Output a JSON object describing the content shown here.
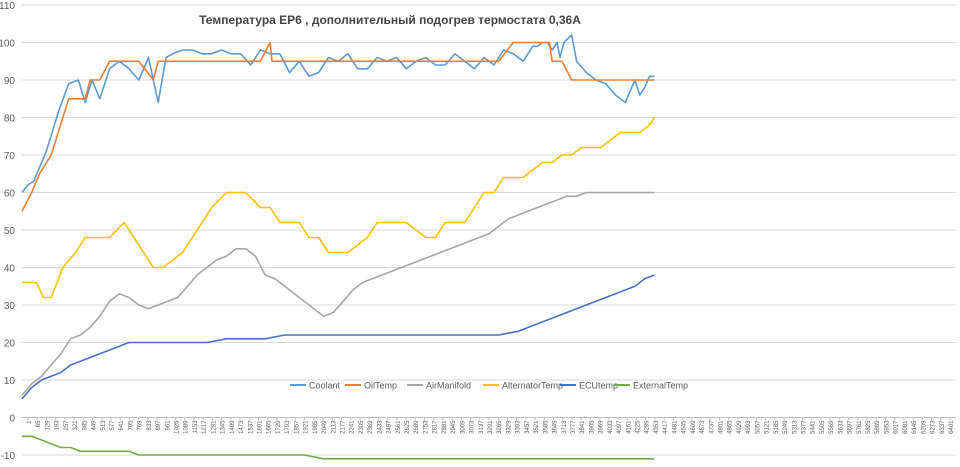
{
  "chart_data": {
    "type": "line",
    "title": "Температура ЕР6 , дополнительный подогрев термостата 0,36А",
    "xlabel": "",
    "ylabel": "",
    "ylim": [
      -10,
      110
    ],
    "yticks": [
      -10,
      0,
      10,
      20,
      30,
      40,
      50,
      60,
      70,
      80,
      90,
      100,
      110
    ],
    "xlim": [
      0,
      9600
    ],
    "grid": true,
    "legend_position": "bottom",
    "xtick_labels": [
      "1",
      "65",
      "129",
      "193",
      "257",
      "321",
      "385",
      "449",
      "513",
      "577",
      "641",
      "705",
      "769",
      "833",
      "897",
      "961",
      "1025",
      "1089",
      "1153",
      "1217",
      "1281",
      "1345",
      "1409",
      "1473",
      "1537",
      "1601",
      "1665",
      "1729",
      "1793",
      "1857",
      "1921",
      "1985",
      "2049",
      "2113",
      "2177",
      "2241",
      "2305",
      "2369",
      "2433",
      "2497",
      "2561",
      "2625",
      "2689",
      "2753",
      "2817",
      "2881",
      "2945",
      "3009",
      "3073",
      "3137",
      "3201",
      "3265",
      "3329",
      "3393",
      "3457",
      "3521",
      "3585",
      "3649",
      "3713",
      "3777",
      "3841",
      "3905",
      "3969",
      "4033",
      "4097",
      "4161",
      "4225",
      "4289",
      "4353",
      "4417",
      "4481",
      "4545",
      "4609",
      "4673",
      "4737",
      "4801",
      "4865",
      "4929",
      "4993",
      "5057",
      "5121",
      "5185",
      "5249",
      "5313",
      "5377",
      "5441",
      "5505",
      "5569",
      "5633",
      "5697",
      "5761",
      "5825",
      "5889",
      "5953",
      "6017",
      "6081",
      "6145",
      "6209",
      "6273",
      "6337",
      "6401"
    ],
    "series": [
      {
        "name": "Coolant",
        "color": "#5b9bd5",
        "x": [
          0,
          60,
          120,
          250,
          380,
          480,
          580,
          650,
          720,
          800,
          900,
          1000,
          1100,
          1200,
          1300,
          1350,
          1400,
          1480,
          1550,
          1650,
          1750,
          1850,
          1950,
          2050,
          2150,
          2250,
          2350,
          2450,
          2550,
          2650,
          2750,
          2850,
          2950,
          3050,
          3150,
          3250,
          3350,
          3450,
          3550,
          3650,
          3750,
          3850,
          3950,
          4050,
          4150,
          4250,
          4350,
          4450,
          4550,
          4650,
          4750,
          4850,
          4950,
          5050,
          5150,
          5250,
          5300,
          5350,
          5400,
          5450,
          5500,
          5530,
          5570,
          5650,
          5700,
          5800,
          5900,
          6000,
          6100,
          6200,
          6250,
          6300,
          6350,
          6400,
          6450,
          6500
        ],
        "y": [
          60,
          62,
          63,
          71,
          82,
          89,
          90,
          84,
          90,
          85,
          93,
          95,
          93,
          90,
          96,
          90,
          84,
          96,
          97,
          98,
          98,
          97,
          97,
          98,
          97,
          97,
          94,
          98,
          97,
          97,
          92,
          95,
          91,
          92,
          96,
          95,
          97,
          93,
          93,
          96,
          95,
          96,
          93,
          95,
          96,
          94,
          94,
          97,
          95,
          93,
          96,
          94,
          98,
          97,
          95,
          99,
          99,
          100,
          100,
          98,
          100,
          96,
          100,
          102,
          95,
          92,
          90,
          89,
          86,
          84,
          87,
          90,
          86,
          88,
          91,
          91
        ]
      },
      {
        "name": "OilTemp",
        "color": "#ed7d31",
        "x": [
          0,
          100,
          180,
          300,
          420,
          480,
          550,
          650,
          700,
          800,
          900,
          1100,
          1200,
          1350,
          1400,
          1500,
          1600,
          2150,
          2250,
          2450,
          2550,
          2570,
          2650,
          2800,
          3050,
          3100,
          3200,
          3300,
          4900,
          5050,
          5100,
          5200,
          5300,
          5420,
          5450,
          5550,
          5650,
          5750,
          5800,
          5900,
          6500
        ],
        "y": [
          55,
          60,
          65,
          70,
          80,
          85,
          85,
          85,
          90,
          90,
          95,
          95,
          95,
          90,
          95,
          95,
          95,
          95,
          95,
          95,
          100,
          95,
          95,
          95,
          95,
          95,
          95,
          95,
          95,
          100,
          100,
          100,
          100,
          100,
          95,
          95,
          90,
          90,
          90,
          90,
          90
        ]
      },
      {
        "name": "AirManifold",
        "color": "#a5a5a5",
        "x": [
          0,
          100,
          200,
          300,
          400,
          500,
          600,
          700,
          800,
          900,
          1000,
          1100,
          1200,
          1300,
          1400,
          1500,
          1600,
          1700,
          1800,
          1900,
          2000,
          2100,
          2200,
          2300,
          2400,
          2500,
          2600,
          2700,
          2800,
          2900,
          3000,
          3100,
          3200,
          3300,
          3400,
          3500,
          3600,
          3700,
          3800,
          3900,
          4000,
          4100,
          4200,
          4300,
          4400,
          4500,
          4600,
          4700,
          4800,
          4900,
          5000,
          5100,
          5200,
          5300,
          5400,
          5500,
          5600,
          5700,
          5800,
          5900,
          6000,
          6100,
          6200,
          6300,
          6400,
          6500
        ],
        "y": [
          6,
          9,
          11,
          14,
          17,
          21,
          22,
          24,
          27,
          31,
          33,
          32,
          30,
          29,
          30,
          31,
          32,
          35,
          38,
          40,
          42,
          43,
          45,
          45,
          43,
          38,
          37,
          35,
          33,
          31,
          29,
          27,
          28,
          31,
          34,
          36,
          37,
          38,
          39,
          40,
          41,
          42,
          43,
          44,
          45,
          46,
          47,
          48,
          49,
          51,
          53,
          54,
          55,
          56,
          57,
          58,
          59,
          59,
          60,
          60,
          60,
          60,
          60,
          60,
          60,
          60
        ]
      },
      {
        "name": "AlternatorTemp",
        "color": "#ffc000",
        "x": [
          0,
          150,
          220,
          300,
          420,
          550,
          650,
          750,
          900,
          1050,
          1150,
          1250,
          1350,
          1450,
          1550,
          1650,
          1750,
          1850,
          1950,
          2100,
          2300,
          2450,
          2550,
          2650,
          2750,
          2850,
          2950,
          3050,
          3150,
          3250,
          3350,
          3450,
          3550,
          3650,
          3750,
          3850,
          3950,
          4050,
          4150,
          4250,
          4350,
          4450,
          4550,
          4650,
          4750,
          4850,
          4950,
          5050,
          5150,
          5250,
          5350,
          5450,
          5550,
          5650,
          5750,
          5850,
          5950,
          6050,
          6150,
          6250,
          6350,
          6450,
          6500
        ],
        "y": [
          36,
          36,
          32,
          32,
          40,
          44,
          48,
          48,
          48,
          52,
          48,
          44,
          40,
          40,
          42,
          44,
          48,
          52,
          56,
          60,
          60,
          56,
          56,
          52,
          52,
          52,
          48,
          48,
          44,
          44,
          44,
          46,
          48,
          52,
          52,
          52,
          52,
          50,
          48,
          48,
          52,
          52,
          52,
          56,
          60,
          60,
          64,
          64,
          64,
          66,
          68,
          68,
          70,
          70,
          72,
          72,
          72,
          74,
          76,
          76,
          76,
          78,
          80
        ]
      },
      {
        "name": "ECUtemp",
        "color": "#4472c4",
        "x": [
          0,
          100,
          200,
          300,
          400,
          500,
          600,
          700,
          800,
          900,
          1000,
          1100,
          1300,
          1500,
          1700,
          1900,
          2100,
          2300,
          2500,
          2700,
          2900,
          3100,
          3300,
          3500,
          3700,
          3900,
          4100,
          4300,
          4500,
          4700,
          4900,
          5100,
          5200,
          5300,
          5400,
          5500,
          5600,
          5700,
          5800,
          5900,
          6000,
          6100,
          6200,
          6300,
          6400,
          6500
        ],
        "y": [
          5,
          8,
          10,
          11,
          12,
          14,
          15,
          16,
          17,
          18,
          19,
          20,
          20,
          20,
          20,
          20,
          21,
          21,
          21,
          22,
          22,
          22,
          22,
          22,
          22,
          22,
          22,
          22,
          22,
          22,
          22,
          23,
          24,
          25,
          26,
          27,
          28,
          29,
          30,
          31,
          32,
          33,
          34,
          35,
          37,
          38
        ]
      },
      {
        "name": "ExternalTemp",
        "color": "#70ad47",
        "x": [
          0,
          100,
          200,
          300,
          400,
          500,
          600,
          700,
          800,
          900,
          1000,
          1100,
          1200,
          1300,
          1500,
          1700,
          1900,
          2100,
          2300,
          2500,
          2700,
          2900,
          3100,
          3300,
          3500,
          3700,
          3900,
          4100,
          4300,
          4500,
          4700,
          4900,
          5100,
          5300,
          5500,
          5700,
          5900,
          6100,
          6300,
          6500
        ],
        "y": [
          -5,
          -5,
          -6,
          -7,
          -8,
          -8,
          -9,
          -9,
          -9,
          -9,
          -9,
          -9,
          -10,
          -10,
          -10,
          -10,
          -10,
          -10,
          -10,
          -10,
          -10,
          -10,
          -11,
          -11,
          -11,
          -11,
          -11,
          -11,
          -11,
          -11,
          -11,
          -11,
          -11,
          -11,
          -11,
          -11,
          -11,
          -11,
          -11,
          -11
        ]
      }
    ]
  }
}
